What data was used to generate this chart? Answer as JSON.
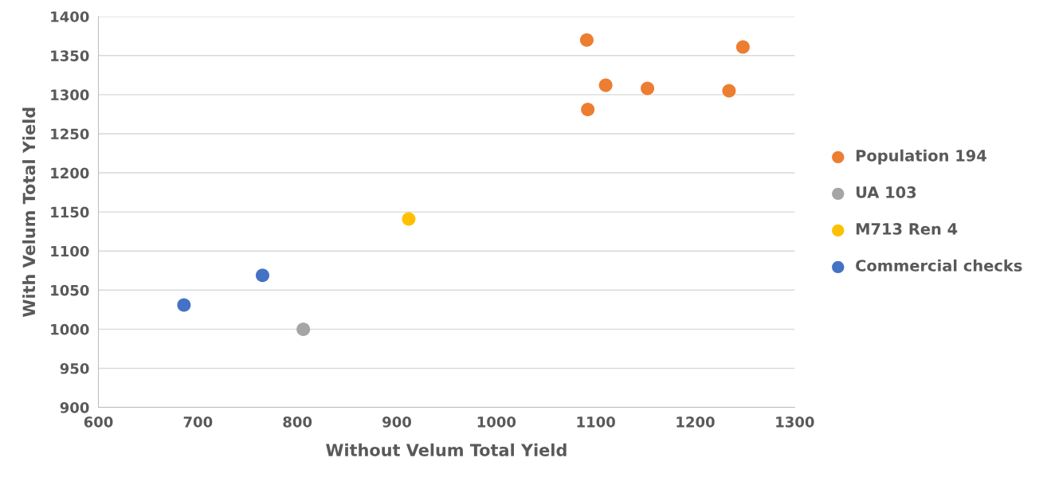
{
  "chart_data": {
    "type": "scatter",
    "xlabel": "Without Velum Total Yield",
    "ylabel": "With Velum Total Yield",
    "xlim": [
      600,
      1300
    ],
    "xticks": [
      600,
      700,
      800,
      900,
      1000,
      1100,
      1200,
      1300
    ],
    "ylim": [
      900,
      1400
    ],
    "yticks": [
      900,
      950,
      1000,
      1050,
      1100,
      1150,
      1200,
      1250,
      1300,
      1350,
      1400
    ],
    "grid": "y",
    "legend": "right",
    "marker": "circle",
    "series": [
      {
        "name": "Population 194",
        "color": "#ed7d31",
        "x": [
          1091,
          1110,
          1092,
          1152,
          1234,
          1248
        ],
        "values": [
          1370,
          1312,
          1281,
          1308,
          1305,
          1361
        ]
      },
      {
        "name": "UA 103",
        "color": "#a5a5a5",
        "x": [
          806
        ],
        "values": [
          1000
        ]
      },
      {
        "name": "M713 Ren 4",
        "color": "#ffc000",
        "x": [
          912
        ],
        "values": [
          1141
        ]
      },
      {
        "name": "Commercial checks",
        "color": "#4472c4",
        "x": [
          765,
          686
        ],
        "values": [
          1069,
          1031
        ]
      }
    ]
  }
}
